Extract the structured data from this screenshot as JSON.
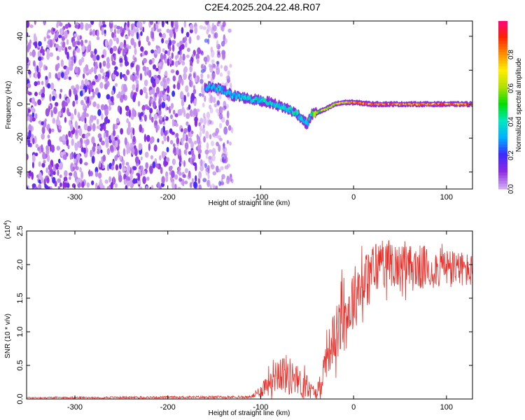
{
  "title": "C2E4.2025.204.22.48.R07",
  "chart_data": [
    {
      "type": "heatmap",
      "xlabel": "Height of straight line (km)",
      "ylabel": "Frequency (Hz)",
      "xlim": [
        -352,
        128
      ],
      "ylim": [
        -50,
        49
      ],
      "x_ticks": [
        -300,
        -200,
        -100,
        0,
        100
      ],
      "y_ticks": [
        -40,
        -20,
        0,
        20,
        40
      ],
      "colorbar": {
        "label": "Normalized spectral amplitude",
        "range": [
          0,
          1
        ],
        "ticks": [
          "0.0",
          "0.2",
          "0.4",
          "0.6",
          "0.8"
        ],
        "colors": [
          "#ffffff",
          "#d0a8f0",
          "#8a2be2",
          "#3b2bff",
          "#00b0ff",
          "#00e8c0",
          "#00dd00",
          "#b0e000",
          "#ffee00",
          "#ff8c00",
          "#ff2000",
          "#ff0088"
        ]
      },
      "noise_region_x": [
        -352,
        -130
      ],
      "ridge": [
        {
          "x": -160,
          "freq": 10,
          "amp": 0.35
        },
        {
          "x": -150,
          "freq": 10,
          "amp": 0.45
        },
        {
          "x": -140,
          "freq": 8,
          "amp": 0.4
        },
        {
          "x": -130,
          "freq": 5,
          "amp": 0.4
        },
        {
          "x": -120,
          "freq": 4,
          "amp": 0.45
        },
        {
          "x": -110,
          "freq": 3,
          "amp": 0.45
        },
        {
          "x": -100,
          "freq": 2,
          "amp": 0.45
        },
        {
          "x": -90,
          "freq": 1,
          "amp": 0.45
        },
        {
          "x": -80,
          "freq": -1,
          "amp": 0.45
        },
        {
          "x": -70,
          "freq": -3,
          "amp": 0.45
        },
        {
          "x": -60,
          "freq": -6,
          "amp": 0.45
        },
        {
          "x": -50,
          "freq": -12,
          "amp": 0.4
        },
        {
          "x": -45,
          "freq": -6,
          "amp": 0.55
        },
        {
          "x": -40,
          "freq": -5,
          "amp": 0.65
        },
        {
          "x": -30,
          "freq": -3,
          "amp": 0.7
        },
        {
          "x": -20,
          "freq": 0,
          "amp": 0.75
        },
        {
          "x": -10,
          "freq": 1,
          "amp": 0.8
        },
        {
          "x": 0,
          "freq": 1,
          "amp": 0.85
        },
        {
          "x": 10,
          "freq": 0.5,
          "amp": 0.95
        },
        {
          "x": 20,
          "freq": 0,
          "amp": 0.9
        },
        {
          "x": 40,
          "freq": 0,
          "amp": 0.9
        },
        {
          "x": 60,
          "freq": 0,
          "amp": 0.9
        },
        {
          "x": 80,
          "freq": 0,
          "amp": 0.9
        },
        {
          "x": 100,
          "freq": 0,
          "amp": 0.9
        },
        {
          "x": 128,
          "freq": 0,
          "amp": 0.9
        }
      ]
    },
    {
      "type": "line",
      "xlabel": "Height of straight line (km)",
      "ylabel": "SNR (10 * v/v)",
      "yscale_label": "(x10",
      "yscale_exp": "4",
      "xlim": [
        -352,
        128
      ],
      "ylim": [
        0,
        2.5
      ],
      "x_ticks": [
        -300,
        -200,
        -100,
        0,
        100
      ],
      "y_ticks": [
        "0.0",
        "0.5",
        "1.0",
        "1.5",
        "2.0",
        "2.5"
      ],
      "color": "#e8302a",
      "envelope": [
        {
          "x": -352,
          "mean": 0.02,
          "amp": 0.01
        },
        {
          "x": -110,
          "mean": 0.03,
          "amp": 0.02
        },
        {
          "x": -100,
          "mean": 0.12,
          "amp": 0.1
        },
        {
          "x": -90,
          "mean": 0.3,
          "amp": 0.25
        },
        {
          "x": -80,
          "mean": 0.42,
          "amp": 0.3
        },
        {
          "x": -70,
          "mean": 0.35,
          "amp": 0.3
        },
        {
          "x": -60,
          "mean": 0.25,
          "amp": 0.25
        },
        {
          "x": -50,
          "mean": 0.15,
          "amp": 0.15
        },
        {
          "x": -40,
          "mean": 0.1,
          "amp": 0.08
        },
        {
          "x": -35,
          "mean": 0.25,
          "amp": 0.2
        },
        {
          "x": -30,
          "mean": 0.6,
          "amp": 0.3
        },
        {
          "x": -20,
          "mean": 0.95,
          "amp": 0.4
        },
        {
          "x": -10,
          "mean": 1.15,
          "amp": 0.5
        },
        {
          "x": 0,
          "mean": 1.5,
          "amp": 0.5
        },
        {
          "x": 10,
          "mean": 1.7,
          "amp": 0.4
        },
        {
          "x": 20,
          "mean": 1.9,
          "amp": 0.45
        },
        {
          "x": 30,
          "mean": 2.05,
          "amp": 0.4
        },
        {
          "x": 50,
          "mean": 1.95,
          "amp": 0.35
        },
        {
          "x": 70,
          "mean": 1.95,
          "amp": 0.35
        },
        {
          "x": 90,
          "mean": 1.95,
          "amp": 0.3
        },
        {
          "x": 110,
          "mean": 1.95,
          "amp": 0.28
        },
        {
          "x": 128,
          "mean": 1.9,
          "amp": 0.25
        }
      ]
    }
  ]
}
